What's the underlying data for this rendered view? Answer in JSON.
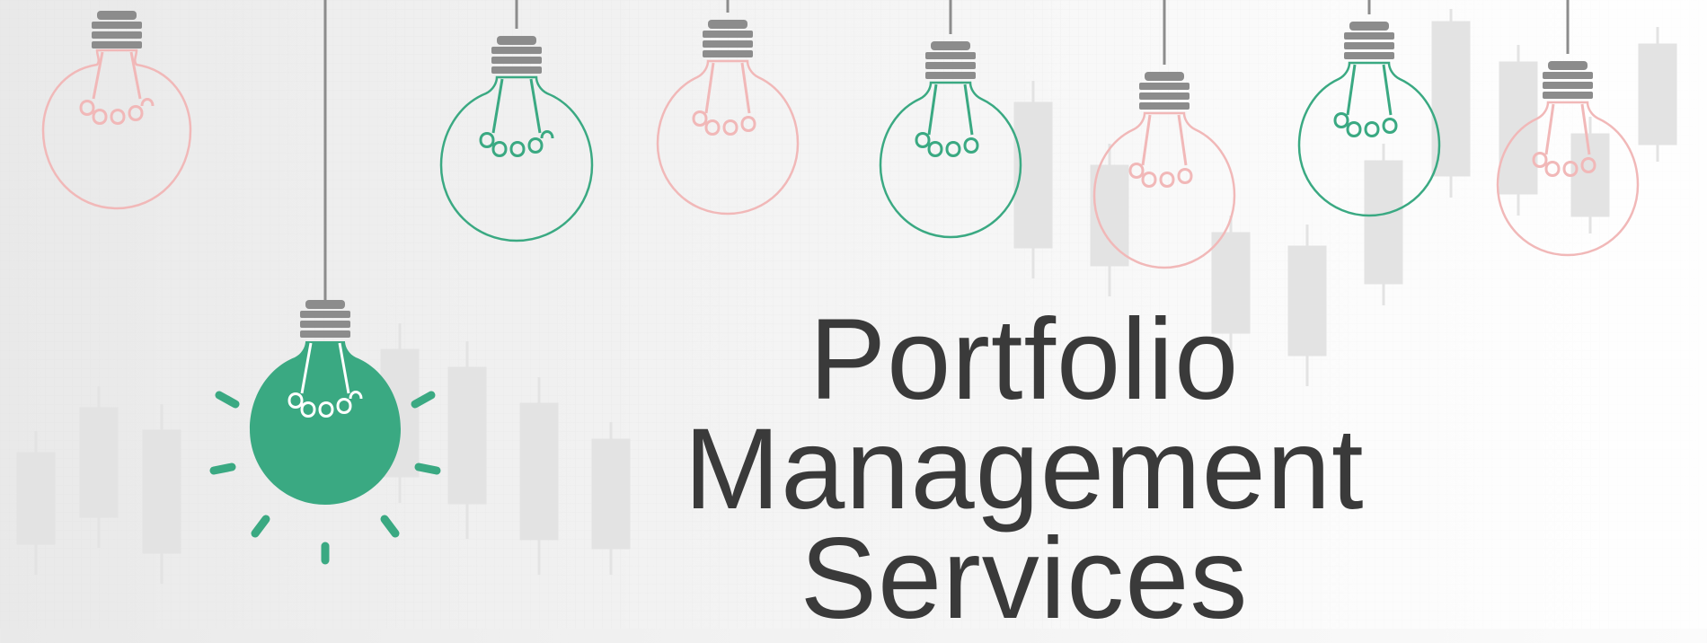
{
  "banner": {
    "headline": {
      "line1": "Portfolio",
      "line2": "Management",
      "line3": "Services"
    },
    "colors": {
      "background": "#efefef",
      "text": "#3a3a3a",
      "green": "#3aa982",
      "pink": "#f1b8b8",
      "socket": "#8c8c8c",
      "cord": "#8c8c8c",
      "candles": "#e2e2e2"
    },
    "illustration": {
      "description_icon": "lightbulb-icon",
      "lit_bulb_icon": "lit-lightbulb-icon"
    }
  }
}
